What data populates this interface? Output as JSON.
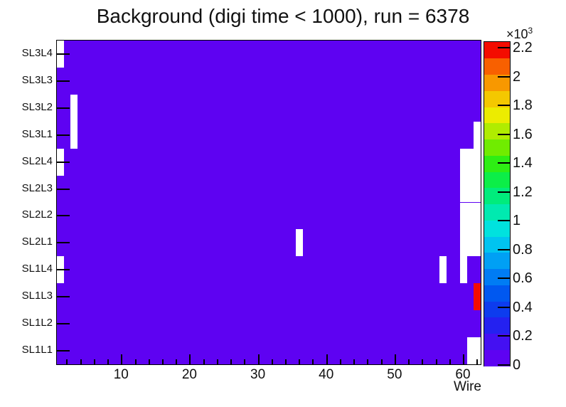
{
  "chart_data": {
    "type": "heatmap",
    "title": "Background (digi time < 1000), run = 6378",
    "xlabel": "Wire",
    "x_range": [
      0.5,
      62.5
    ],
    "n_wires": 62,
    "x_major_ticks": [
      10,
      20,
      30,
      40,
      50,
      60
    ],
    "x_minor_tick_step": 2,
    "rows_top_to_bottom": [
      "SL3L4",
      "SL3L3",
      "SL3L2",
      "SL3L1",
      "SL2L4",
      "SL2L3",
      "SL2L2",
      "SL2L1",
      "SL1L4",
      "SL1L3",
      "SL1L2",
      "SL1L1"
    ],
    "z_axis": {
      "min": 0,
      "max": 2245,
      "tick_values": [
        0,
        200,
        400,
        600,
        800,
        1000,
        1200,
        1400,
        1600,
        1800,
        2000,
        2200
      ],
      "tick_labels": [
        "0",
        "0.2",
        "0.4",
        "0.6",
        "0.8",
        "1",
        "1.2",
        "1.4",
        "1.6",
        "1.8",
        "2",
        "2.2"
      ],
      "exponent_prefix": "×10",
      "exponent_sup": "3"
    },
    "background_fill": {
      "description": "all occupied bins sit in the lowest color band",
      "approx_value": 50
    },
    "empty_bins": [
      {
        "row": "SL3L4",
        "wires": [
          1,
          1
        ]
      },
      {
        "row": "SL3L2",
        "wires": [
          3,
          3
        ]
      },
      {
        "row": "SL3L1",
        "wires": [
          3,
          3
        ]
      },
      {
        "row": "SL3L1",
        "wires": [
          62,
          62
        ]
      },
      {
        "row": "SL2L4",
        "wires": [
          1,
          1
        ]
      },
      {
        "row": "SL2L4",
        "wires": [
          60,
          62
        ]
      },
      {
        "row": "SL2L3",
        "wires": [
          60,
          62
        ]
      },
      {
        "row": "SL2L2",
        "wires": [
          60,
          62
        ]
      },
      {
        "row": "SL2L1",
        "wires": [
          36,
          36
        ]
      },
      {
        "row": "SL2L1",
        "wires": [
          60,
          62
        ]
      },
      {
        "row": "SL1L4",
        "wires": [
          1,
          1
        ]
      },
      {
        "row": "SL1L4",
        "wires": [
          57,
          57
        ]
      },
      {
        "row": "SL1L4",
        "wires": [
          60,
          60
        ]
      },
      {
        "row": "SL1L1",
        "wires": [
          61,
          62
        ]
      }
    ],
    "hot_bins": [
      {
        "row": "SL1L3",
        "wire": 62,
        "approx_value": 2200
      }
    ],
    "palette_colors_low_to_high": [
      "#5e02f2",
      "#4410f2",
      "#2421f0",
      "#0d3cee",
      "#0058f0",
      "#007cf4",
      "#00a0f4",
      "#00c4f0",
      "#00e2de",
      "#00eab0",
      "#00ec7c",
      "#0cee48",
      "#2eee14",
      "#70ec00",
      "#b0ec00",
      "#ecec00",
      "#f4c800",
      "#f89800",
      "#f86000",
      "#f40c00"
    ]
  }
}
